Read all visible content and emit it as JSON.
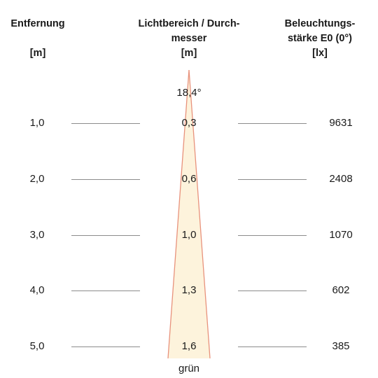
{
  "headers": {
    "distance": {
      "title": "Entfernung",
      "unit": "[m]"
    },
    "diameter": {
      "title_line1": "Lichtbereich / Durch-",
      "title_line2": "messer",
      "unit": "[m]"
    },
    "illuminance": {
      "title_line1": "Beleuchtungs-",
      "title_line2": "stärke E0 (0°)",
      "unit": "[lx]"
    }
  },
  "beam_angle": "18,4°",
  "rows": [
    {
      "distance": "1,0",
      "diameter": "0,3",
      "illuminance": "9631"
    },
    {
      "distance": "2,0",
      "diameter": "0,6",
      "illuminance": "2408"
    },
    {
      "distance": "3,0",
      "diameter": "1,0",
      "illuminance": "1070"
    },
    {
      "distance": "4,0",
      "diameter": "1,3",
      "illuminance": "602"
    },
    {
      "distance": "5,0",
      "diameter": "1,6",
      "illuminance": "385"
    }
  ],
  "light_color": "grün",
  "colors": {
    "beam_fill": "#fdf3dc",
    "beam_edge": "#e8927c",
    "rule": "#8c8c8c"
  }
}
